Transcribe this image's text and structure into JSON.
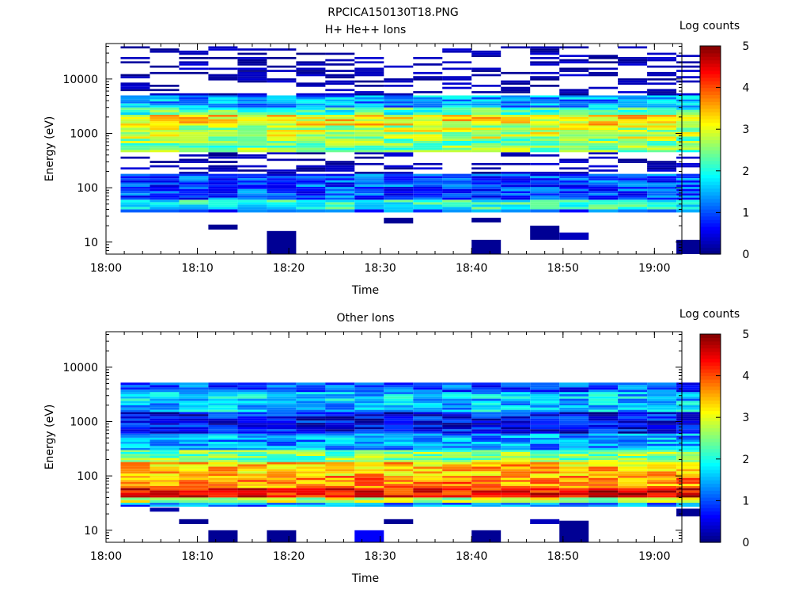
{
  "figure_title": "RPCICA150130T18.PNG",
  "chart_data": [
    {
      "type": "heatmap",
      "title": "H+ He++ Ions",
      "xlabel": "Time",
      "ylabel": "Energy (eV)",
      "y_scale": "log",
      "ylim": [
        6,
        45000
      ],
      "xlim": [
        "18:00",
        "19:03"
      ],
      "x_ticks": [
        "18:00",
        "18:10",
        "18:20",
        "18:30",
        "18:40",
        "18:50",
        "19:00"
      ],
      "y_ticks": [
        "10",
        "100",
        "1000",
        "10000"
      ],
      "colorbar": {
        "label": "Log counts",
        "range": [
          0,
          5
        ],
        "ticks": [
          "0",
          "1",
          "2",
          "3",
          "4",
          "5"
        ],
        "colormap": "jet"
      },
      "time_columns": [
        "18:01:36",
        "18:04:48",
        "18:08:00",
        "18:11:12",
        "18:14:24",
        "18:17:36",
        "18:20:48",
        "18:24:00",
        "18:27:12",
        "18:30:24",
        "18:33:36",
        "18:36:48",
        "18:40:00",
        "18:43:12",
        "18:46:24",
        "18:49:36",
        "18:52:48",
        "18:56:00",
        "18:59:12",
        "19:02:24"
      ],
      "energy_bands_eV": [
        {
          "range": [
            35,
            40
          ],
          "log_counts": 1.1
        },
        {
          "range": [
            40,
            60
          ],
          "log_counts": 2.0
        },
        {
          "range": [
            60,
            180
          ],
          "log_counts": 1.0
        },
        {
          "range": [
            180,
            450
          ],
          "log_counts": 0.4
        },
        {
          "range": [
            450,
            800
          ],
          "log_counts": 2.5
        },
        {
          "range": [
            800,
            1400
          ],
          "log_counts": 2.8
        },
        {
          "range": [
            1400,
            2200
          ],
          "log_counts": 3.2
        },
        {
          "range": [
            2200,
            3000
          ],
          "log_counts": 2.2
        },
        {
          "range": [
            3000,
            5000
          ],
          "log_counts": 1.4
        },
        {
          "range": [
            5000,
            40000
          ],
          "log_counts": 0.1
        }
      ],
      "low_energy_counts": [
        {
          "time": "18:11:12",
          "range": [
            17,
            21
          ],
          "log_counts": 0.1
        },
        {
          "time": "18:17:36",
          "range": [
            6,
            16
          ],
          "log_counts": 0.1
        },
        {
          "time": "18:30:24",
          "range": [
            22,
            28
          ],
          "log_counts": 0.1
        },
        {
          "time": "18:40:00",
          "range": [
            6,
            11
          ],
          "log_counts": 0.1
        },
        {
          "time": "18:40:00",
          "range": [
            23,
            28
          ],
          "log_counts": 0.1
        },
        {
          "time": "18:46:24",
          "range": [
            11,
            20
          ],
          "log_counts": 0.1
        },
        {
          "time": "18:49:36",
          "range": [
            11,
            15
          ],
          "log_counts": 0.3
        },
        {
          "time": "19:02:24",
          "range": [
            6,
            11
          ],
          "log_counts": 0.1
        }
      ]
    },
    {
      "type": "heatmap",
      "title": "Other Ions",
      "xlabel": "Time",
      "ylabel": "Energy (eV)",
      "y_scale": "log",
      "ylim": [
        6,
        45000
      ],
      "xlim": [
        "18:00",
        "19:03"
      ],
      "x_ticks": [
        "18:00",
        "18:10",
        "18:20",
        "18:30",
        "18:40",
        "18:50",
        "19:00"
      ],
      "y_ticks": [
        "10",
        "100",
        "1000",
        "10000"
      ],
      "colorbar": {
        "label": "Log counts",
        "range": [
          0,
          5
        ],
        "ticks": [
          "0",
          "1",
          "2",
          "3",
          "4",
          "5"
        ],
        "colormap": "jet"
      },
      "time_columns": [
        "18:01:36",
        "18:04:48",
        "18:08:00",
        "18:11:12",
        "18:14:24",
        "18:17:36",
        "18:20:48",
        "18:24:00",
        "18:27:12",
        "18:30:24",
        "18:33:36",
        "18:36:48",
        "18:40:00",
        "18:43:12",
        "18:46:24",
        "18:49:36",
        "18:52:48",
        "18:56:00",
        "18:59:12",
        "19:02:24"
      ],
      "energy_bands_eV": [
        {
          "range": [
            27,
            32
          ],
          "log_counts": 1.3
        },
        {
          "range": [
            32,
            40
          ],
          "log_counts": 2.8
        },
        {
          "range": [
            40,
            60
          ],
          "log_counts": 4.4
        },
        {
          "range": [
            60,
            100
          ],
          "log_counts": 3.7
        },
        {
          "range": [
            100,
            180
          ],
          "log_counts": 3.4
        },
        {
          "range": [
            180,
            300
          ],
          "log_counts": 2.5
        },
        {
          "range": [
            300,
            600
          ],
          "log_counts": 1.4
        },
        {
          "range": [
            600,
            1500
          ],
          "log_counts": 0.6
        },
        {
          "range": [
            1500,
            3500
          ],
          "log_counts": 1.6
        },
        {
          "range": [
            3500,
            5200
          ],
          "log_counts": 1.0
        }
      ],
      "low_energy_counts": [
        {
          "time": "18:04:48",
          "range": [
            22,
            26
          ],
          "log_counts": 0.2
        },
        {
          "time": "18:08:00",
          "range": [
            13,
            16
          ],
          "log_counts": 0.1
        },
        {
          "time": "18:11:12",
          "range": [
            6,
            10
          ],
          "log_counts": 0.1
        },
        {
          "time": "18:17:36",
          "range": [
            6,
            10
          ],
          "log_counts": 0.1
        },
        {
          "time": "18:27:12",
          "range": [
            6,
            10
          ],
          "log_counts": 0.6
        },
        {
          "time": "18:30:24",
          "range": [
            13,
            16
          ],
          "log_counts": 0.1
        },
        {
          "time": "18:40:00",
          "range": [
            6,
            10
          ],
          "log_counts": 0.1
        },
        {
          "time": "18:46:24",
          "range": [
            13,
            16
          ],
          "log_counts": 0.3
        },
        {
          "time": "18:49:36",
          "range": [
            6,
            15
          ],
          "log_counts": 0.1
        },
        {
          "time": "19:02:24",
          "range": [
            18,
            25
          ],
          "log_counts": 0.1
        }
      ]
    }
  ]
}
